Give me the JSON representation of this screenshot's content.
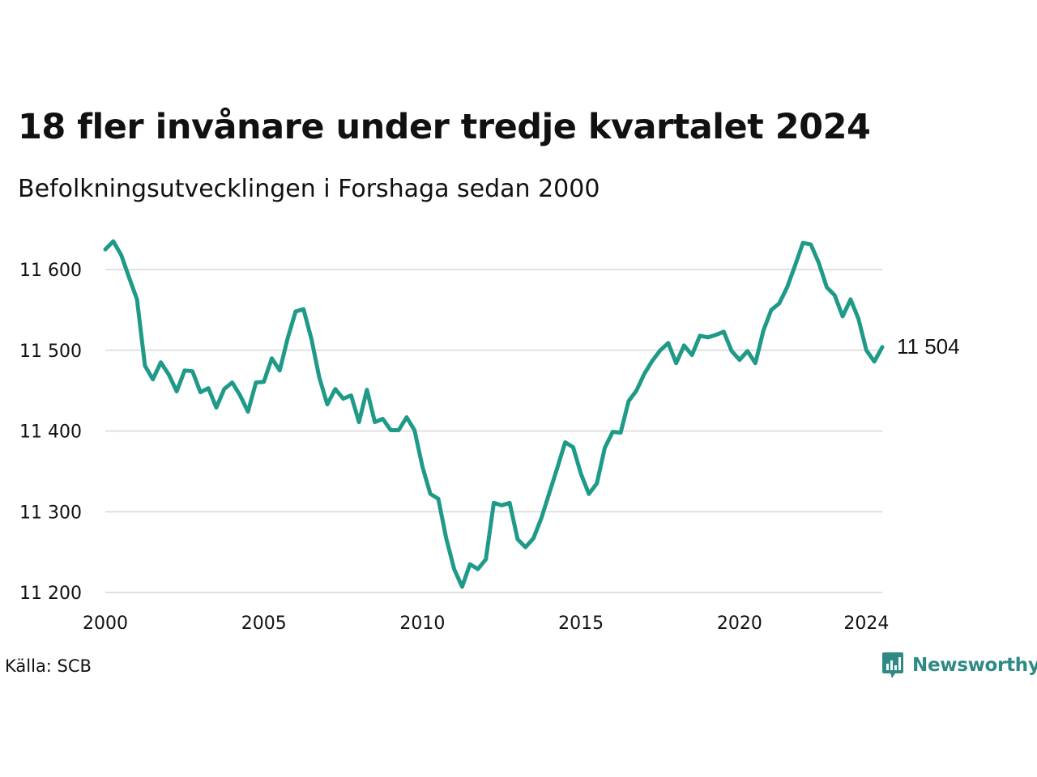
{
  "title": "18 fler invånare under tredje kvartalet 2024",
  "subtitle": "Befolkningsutvecklingen i Forshaga sedan 2000",
  "source": "Källa: SCB",
  "brand": {
    "name": "Newsworthy",
    "color": "#2e8b84",
    "icon": "bar-chart-speech-bubble-icon"
  },
  "colors": {
    "line": "#1f9a89",
    "grid": "#e0e0e0",
    "text": "#111111"
  },
  "chart_data": {
    "type": "line",
    "title": "18 fler invånare under tredje kvartalet 2024",
    "subtitle": "Befolkningsutvecklingen i Forshaga sedan 2000",
    "xlabel": "",
    "ylabel": "",
    "grid": "horizontal",
    "legend": "none",
    "xlim": [
      2000.0,
      2024.5
    ],
    "ylim": [
      11200,
      11640
    ],
    "x_ticks": [
      2000,
      2005,
      2010,
      2015,
      2020,
      2024
    ],
    "x_tick_labels": [
      "2000",
      "2005",
      "2010",
      "2015",
      "2020",
      "2024"
    ],
    "y_ticks": [
      11200,
      11300,
      11400,
      11500,
      11600
    ],
    "y_tick_labels": [
      "11 200",
      "11 300",
      "11 400",
      "11 500",
      "11 600"
    ],
    "end_label": "11 504",
    "series": [
      {
        "name": "",
        "x": [
          2000.0,
          2000.25,
          2000.5,
          2000.75,
          2001.0,
          2001.25,
          2001.5,
          2001.75,
          2002.0,
          2002.25,
          2002.5,
          2002.75,
          2003.0,
          2003.25,
          2003.5,
          2003.75,
          2004.0,
          2004.25,
          2004.5,
          2004.75,
          2005.0,
          2005.25,
          2005.5,
          2005.75,
          2006.0,
          2006.25,
          2006.5,
          2006.75,
          2007.0,
          2007.25,
          2007.5,
          2007.75,
          2008.0,
          2008.25,
          2008.5,
          2008.75,
          2009.0,
          2009.25,
          2009.5,
          2009.75,
          2010.0,
          2010.25,
          2010.5,
          2010.75,
          2011.0,
          2011.25,
          2011.5,
          2011.75,
          2012.0,
          2012.25,
          2012.5,
          2012.75,
          2013.0,
          2013.25,
          2013.5,
          2013.75,
          2014.0,
          2014.25,
          2014.5,
          2014.75,
          2015.0,
          2015.25,
          2015.5,
          2015.75,
          2016.0,
          2016.25,
          2016.5,
          2016.75,
          2017.0,
          2017.25,
          2017.5,
          2017.75,
          2018.0,
          2018.25,
          2018.5,
          2018.75,
          2019.0,
          2019.25,
          2019.5,
          2019.75,
          2020.0,
          2020.25,
          2020.5,
          2020.75,
          2021.0,
          2021.25,
          2021.5,
          2021.75,
          2022.0,
          2022.25,
          2022.5,
          2022.75,
          2023.0,
          2023.25,
          2023.5,
          2023.75,
          2024.0,
          2024.25,
          2024.5
        ],
        "y": [
          11625,
          11635,
          11618,
          11590,
          11563,
          11481,
          11464,
          11485,
          11470,
          11449,
          11475,
          11474,
          11448,
          11453,
          11429,
          11452,
          11460,
          11444,
          11424,
          11460,
          11461,
          11490,
          11475,
          11515,
          11548,
          11551,
          11514,
          11466,
          11433,
          11452,
          11440,
          11444,
          11411,
          11451,
          11411,
          11415,
          11401,
          11401,
          11417,
          11401,
          11356,
          11322,
          11316,
          11267,
          11229,
          11207,
          11235,
          11229,
          11241,
          11311,
          11308,
          11311,
          11266,
          11256,
          11267,
          11292,
          11323,
          11354,
          11386,
          11380,
          11347,
          11322,
          11335,
          11379,
          11399,
          11398,
          11437,
          11450,
          11471,
          11487,
          11500,
          11509,
          11484,
          11506,
          11494,
          11518,
          11516,
          11519,
          11523,
          11499,
          11488,
          11499,
          11484,
          11524,
          11550,
          11558,
          11578,
          11605,
          11633,
          11631,
          11608,
          11578,
          11568,
          11542,
          11563,
          11539,
          11500,
          11486,
          11504
        ]
      }
    ]
  }
}
